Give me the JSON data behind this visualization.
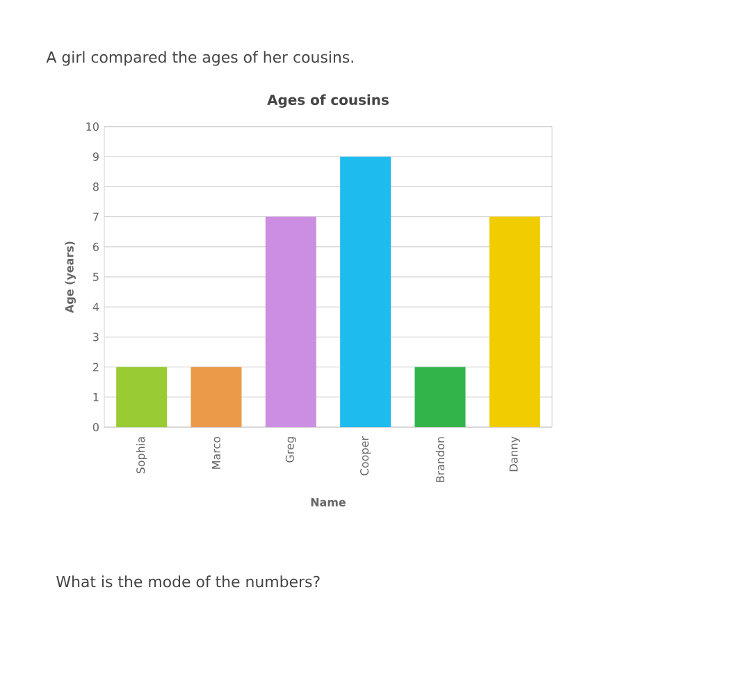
{
  "chart_data": {
    "type": "bar",
    "title": "Ages of cousins",
    "xlabel": "Name",
    "ylabel": "Age (years)",
    "categories": [
      "Sophia",
      "Marco",
      "Greg",
      "Cooper",
      "Brandon",
      "Danny"
    ],
    "values": [
      2,
      2,
      7,
      9,
      2,
      7
    ],
    "colors": [
      "#99cc33",
      "#ea9a48",
      "#cc8ee0",
      "#1ebbee",
      "#33b44a",
      "#f0cc00"
    ],
    "ylim": [
      0,
      10
    ],
    "yticks": [
      0,
      1,
      2,
      3,
      4,
      5,
      6,
      7,
      8,
      9,
      10
    ],
    "grid": "y",
    "annotations": [
      "A girl compared the ages of her cousins.",
      "What is the mode of the numbers?"
    ]
  }
}
